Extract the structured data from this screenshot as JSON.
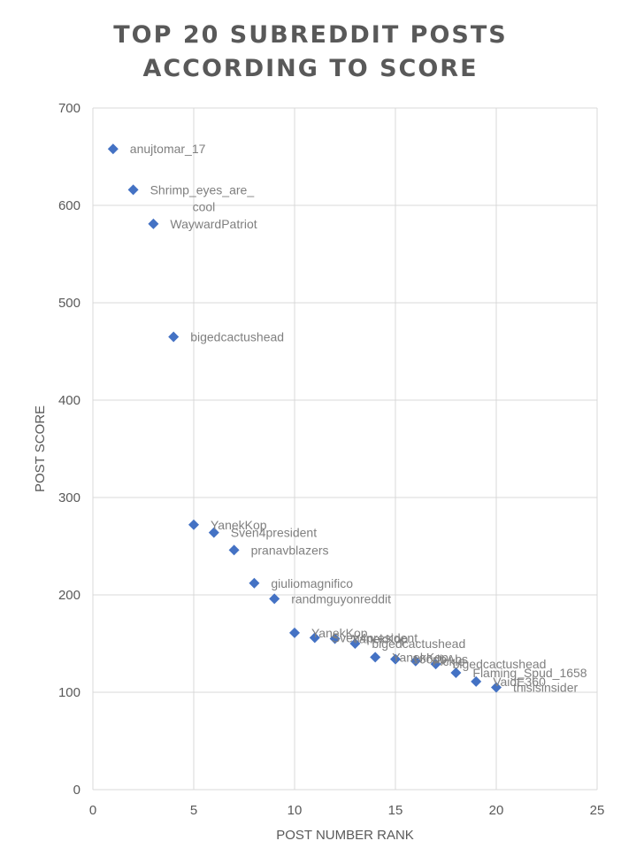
{
  "chart_data": {
    "type": "scatter",
    "title_lines": [
      "TOP 20 SUBREDDIT POSTS",
      "ACCORDING TO SCORE"
    ],
    "xlabel": "POST NUMBER RANK",
    "ylabel": "POST SCORE",
    "xlim": [
      0,
      25
    ],
    "ylim": [
      0,
      700
    ],
    "xticks": [
      0,
      5,
      10,
      15,
      20,
      25
    ],
    "yticks": [
      0,
      100,
      200,
      300,
      400,
      500,
      600,
      700
    ],
    "grid": "vertical and horizontal major gridlines",
    "marker": "diamond",
    "marker_color": "#4472C4",
    "points": [
      {
        "x": 1,
        "y": 658,
        "label": [
          "anujtomar_17"
        ]
      },
      {
        "x": 2,
        "y": 616,
        "label": [
          "Shrimp_eyes_are_",
          "cool"
        ]
      },
      {
        "x": 3,
        "y": 581,
        "label": [
          "WaywardPatriot"
        ]
      },
      {
        "x": 4,
        "y": 465,
        "label": [
          "bigedcactushead"
        ]
      },
      {
        "x": 5,
        "y": 272,
        "label": [
          "YanekKop"
        ]
      },
      {
        "x": 6,
        "y": 264,
        "label": [
          "Sven4president"
        ]
      },
      {
        "x": 7,
        "y": 246,
        "label": [
          "pranavblazers"
        ]
      },
      {
        "x": 8,
        "y": 212,
        "label": [
          "giuliomagnifico"
        ]
      },
      {
        "x": 9,
        "y": 196,
        "label": [
          "randmguyonreddit"
        ]
      },
      {
        "x": 10,
        "y": 161,
        "label": [
          "YanekKop"
        ]
      },
      {
        "x": 11,
        "y": 156,
        "label": [
          "Sven4president"
        ]
      },
      {
        "x": 12,
        "y": 155,
        "label": [
          "YanekKop"
        ]
      },
      {
        "x": 13,
        "y": 150,
        "label": [
          "bigedcactushead"
        ]
      },
      {
        "x": 14,
        "y": 136,
        "label": [
          "YanekKop"
        ]
      },
      {
        "x": 15,
        "y": 134,
        "label": [
          "100dbAbs"
        ]
      },
      {
        "x": 16,
        "y": 132,
        "label": [
          "Fickle-"
        ]
      },
      {
        "x": 17,
        "y": 129,
        "label": [
          "bigedcactushead"
        ]
      },
      {
        "x": 18,
        "y": 120,
        "label": [
          "Flaming_Spud_1658"
        ]
      },
      {
        "x": 19,
        "y": 111,
        "label": [
          "VaidE360"
        ]
      },
      {
        "x": 20,
        "y": 105,
        "label": [
          "thisisinsider"
        ]
      }
    ]
  }
}
